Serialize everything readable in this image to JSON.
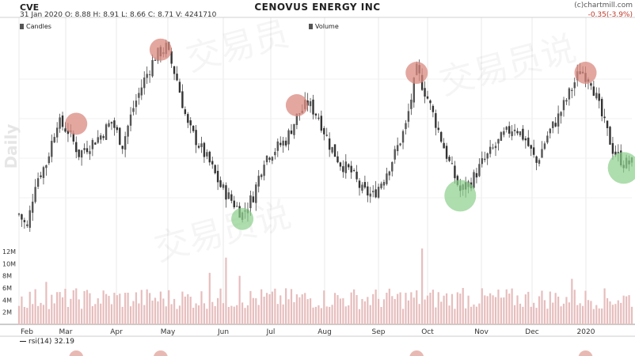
{
  "header": {
    "symbol": "CVE",
    "ohlc_line": "31 Jan 2020   O: 8.88   H: 8.91   L: 8.66   C: 8.71   V: 4241710",
    "title": "CENOVUS ENERGY INC",
    "source": "(c)chartmill.com",
    "change": "-0.35(-3.9%)"
  },
  "legend": {
    "candles": "Candles",
    "volume": "Volume"
  },
  "watermark": "Daily",
  "rsi_label": "rsi(14) 32.19",
  "colors": {
    "up": "#555555",
    "down": "#333333",
    "top_circle": "#d98a80",
    "bottom_circle": "#8ccf8c",
    "volume": "#e7bdbd",
    "grid": "#e9e9e9"
  },
  "chart_data": {
    "type": "candlestick",
    "title": "CENOVUS ENERGY INC",
    "x_ticks": [
      "Feb",
      "Mar",
      "Apr",
      "May",
      "Jun",
      "Jul",
      "Aug",
      "Sep",
      "Oct",
      "Nov",
      "Dec",
      "2020"
    ],
    "price_path": [
      [
        0,
        9.5
      ],
      [
        3,
        9.2
      ],
      [
        6,
        10.2
      ],
      [
        10,
        10.6
      ],
      [
        14,
        11.5
      ],
      [
        18,
        11.3
      ],
      [
        22,
        10.8
      ],
      [
        26,
        11.0
      ],
      [
        30,
        11.2
      ],
      [
        34,
        11.5
      ],
      [
        38,
        11.0
      ],
      [
        42,
        11.8
      ],
      [
        46,
        12.4
      ],
      [
        50,
        12.9
      ],
      [
        54,
        13.1
      ],
      [
        58,
        12.4
      ],
      [
        62,
        11.4
      ],
      [
        66,
        11.0
      ],
      [
        70,
        10.6
      ],
      [
        74,
        10.1
      ],
      [
        78,
        9.8
      ],
      [
        82,
        9.5
      ],
      [
        86,
        9.9
      ],
      [
        90,
        10.7
      ],
      [
        94,
        10.9
      ],
      [
        98,
        11.1
      ],
      [
        102,
        11.6
      ],
      [
        106,
        11.9
      ],
      [
        110,
        11.6
      ],
      [
        114,
        11.0
      ],
      [
        118,
        10.6
      ],
      [
        122,
        10.4
      ],
      [
        126,
        10.0
      ],
      [
        130,
        9.9
      ],
      [
        134,
        10.3
      ],
      [
        138,
        10.8
      ],
      [
        142,
        11.4
      ],
      [
        146,
        12.6
      ],
      [
        150,
        12.0
      ],
      [
        154,
        11.3
      ],
      [
        158,
        10.6
      ],
      [
        162,
        10.0
      ],
      [
        166,
        10.2
      ],
      [
        170,
        10.6
      ],
      [
        174,
        10.9
      ],
      [
        178,
        11.2
      ],
      [
        182,
        11.4
      ],
      [
        186,
        11.1
      ],
      [
        190,
        10.6
      ],
      [
        194,
        11.2
      ],
      [
        198,
        11.6
      ],
      [
        202,
        12.1
      ],
      [
        206,
        12.6
      ],
      [
        210,
        12.4
      ],
      [
        214,
        11.6
      ],
      [
        218,
        10.9
      ],
      [
        222,
        10.6
      ]
    ],
    "volume_range": [
      0,
      12000000
    ],
    "volume_ticks": [
      "2M",
      "4M",
      "6M",
      "8M",
      "10M",
      "12M"
    ],
    "volume_spikes": [
      [
        10,
        7000000
      ],
      [
        70,
        8500000
      ],
      [
        76,
        11000000
      ],
      [
        81,
        8000000
      ],
      [
        148,
        12500000
      ],
      [
        163,
        6000000
      ],
      [
        203,
        7500000
      ]
    ],
    "swing_highs": [
      [
        21,
        11.5
      ],
      [
        52,
        13.1
      ],
      [
        102,
        11.9
      ],
      [
        146,
        12.6
      ],
      [
        208,
        12.6
      ]
    ],
    "swing_lows": [
      [
        82,
        9.5
      ],
      [
        162,
        10.0
      ],
      [
        222,
        10.6
      ]
    ]
  }
}
